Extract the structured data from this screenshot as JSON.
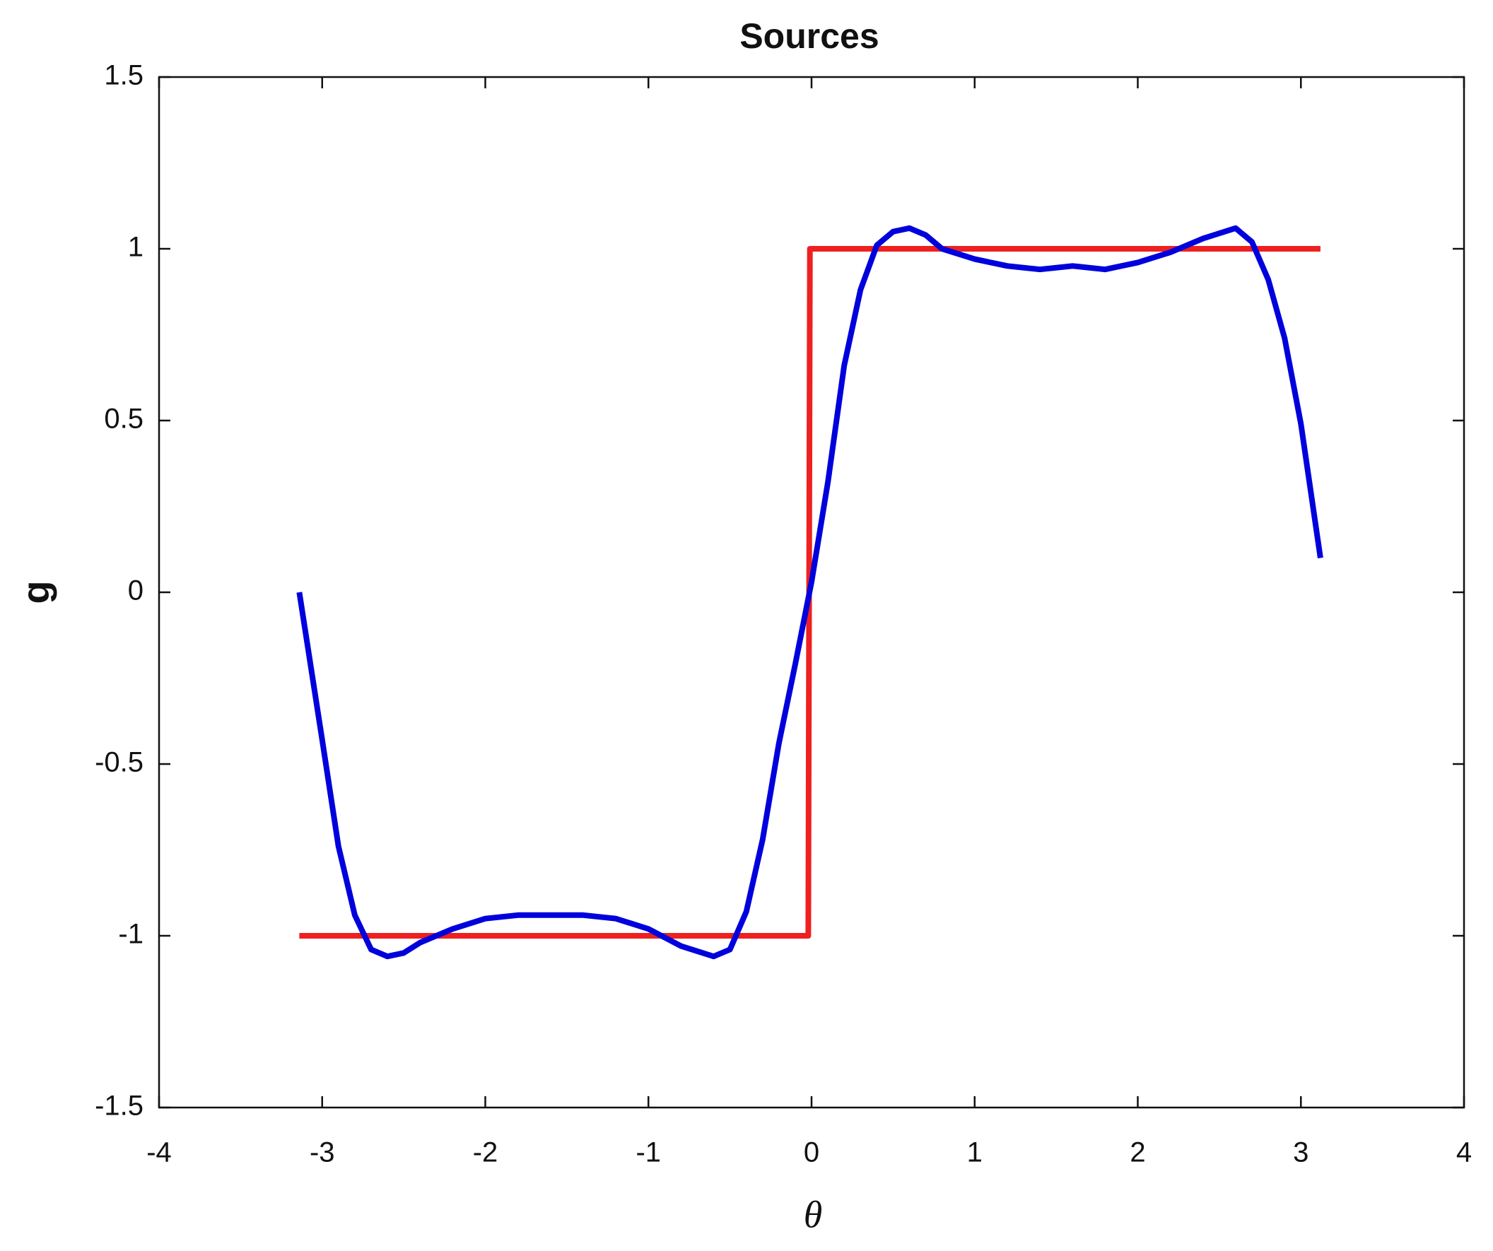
{
  "chart_data": {
    "type": "line",
    "title": "Sources",
    "xlabel": "θ",
    "ylabel": "g",
    "xlim": [
      -4,
      4
    ],
    "xticks": [
      -4,
      -3,
      -2,
      -1,
      0,
      1,
      2,
      3,
      4
    ],
    "ylim": [
      -1.5,
      1.5
    ],
    "yticks": [
      -1.5,
      -1,
      -0.5,
      0,
      0.5,
      1,
      1.5
    ],
    "series": [
      {
        "color": "#ee2020",
        "x": [
          -3.14,
          -0.02,
          -0.01,
          3.12
        ],
        "values": [
          -1,
          -1,
          1,
          1
        ]
      },
      {
        "color": "#0000dd",
        "x": [
          -3.14,
          -3.0,
          -2.9,
          -2.8,
          -2.7,
          -2.6,
          -2.5,
          -2.4,
          -2.2,
          -2.0,
          -1.8,
          -1.6,
          -1.4,
          -1.2,
          -1.0,
          -0.8,
          -0.6,
          -0.5,
          -0.4,
          -0.3,
          -0.2,
          -0.1,
          0,
          0.1,
          0.2,
          0.3,
          0.4,
          0.5,
          0.6,
          0.7,
          0.8,
          1.0,
          1.2,
          1.4,
          1.6,
          1.8,
          2.0,
          2.2,
          2.4,
          2.6,
          2.7,
          2.8,
          2.9,
          3.0,
          3.12
        ],
        "values": [
          0,
          -0.43,
          -0.74,
          -0.94,
          -1.04,
          -1.06,
          -1.05,
          -1.02,
          -0.98,
          -0.95,
          -0.94,
          -0.94,
          -0.94,
          -0.95,
          -0.98,
          -1.03,
          -1.06,
          -1.04,
          -0.93,
          -0.72,
          -0.44,
          -0.21,
          0.03,
          0.32,
          0.66,
          0.88,
          1.01,
          1.05,
          1.06,
          1.04,
          1.0,
          0.97,
          0.95,
          0.94,
          0.95,
          0.94,
          0.96,
          0.99,
          1.03,
          1.06,
          1.02,
          0.91,
          0.74,
          0.49,
          0.1
        ]
      }
    ]
  }
}
